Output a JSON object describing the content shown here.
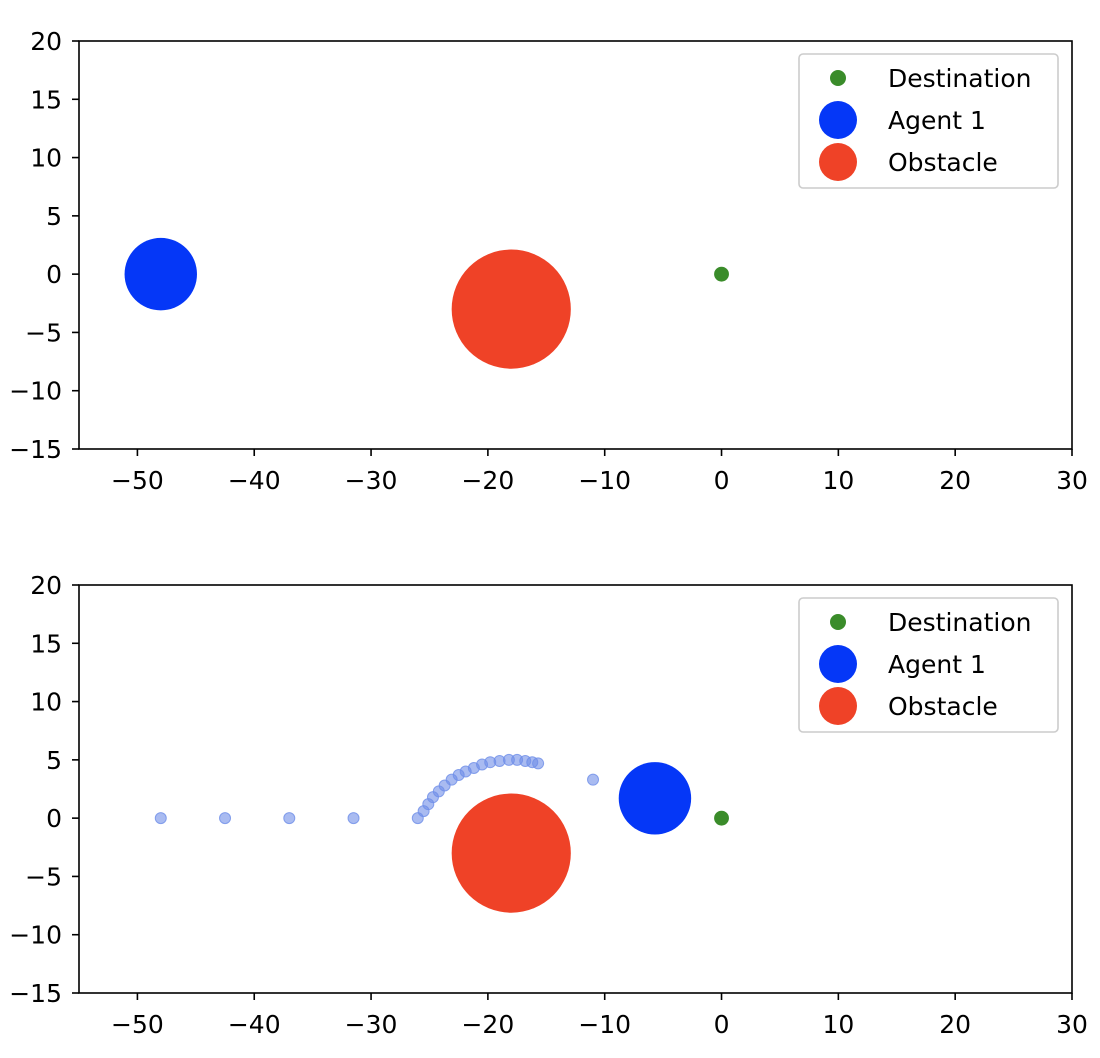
{
  "chart_data": [
    {
      "type": "scatter",
      "title": "",
      "xlabel": "",
      "ylabel": "",
      "xlim": [
        -55,
        30
      ],
      "ylim": [
        -15,
        20
      ],
      "xticks": [
        -50,
        -40,
        -30,
        -20,
        -10,
        0,
        10,
        20,
        30
      ],
      "xtick_labels": [
        "−50",
        "−40",
        "−30",
        "−20",
        "−10",
        "0",
        "10",
        "20",
        "30"
      ],
      "yticks": [
        20,
        15,
        10,
        5,
        0,
        -5,
        -10,
        -15
      ],
      "ytick_labels": [
        "20",
        "15",
        "10",
        "5",
        "0",
        "−5",
        "−10",
        "−15"
      ],
      "legend_position": "top-right",
      "legend": [
        "Destination",
        "Agent 1",
        "Obstacle"
      ],
      "colors": {
        "destination": "#3a8c2a",
        "agent": "#0537f7",
        "obstacle": "#ef4227",
        "trail": "#6f8ee8"
      },
      "destination": {
        "x": 0,
        "y": 0,
        "radius": 0.55
      },
      "agent": {
        "x": -48,
        "y": 0,
        "radius": 3.1
      },
      "obstacle": {
        "x": -18,
        "y": -3,
        "radius": 5.1
      },
      "trail": []
    },
    {
      "type": "scatter",
      "title": "",
      "xlabel": "",
      "ylabel": "",
      "xlim": [
        -55,
        30
      ],
      "ylim": [
        -15,
        20
      ],
      "xticks": [
        -50,
        -40,
        -30,
        -20,
        -10,
        0,
        10,
        20,
        30
      ],
      "xtick_labels": [
        "−50",
        "−40",
        "−30",
        "−20",
        "−10",
        "0",
        "10",
        "20",
        "30"
      ],
      "yticks": [
        20,
        15,
        10,
        5,
        0,
        -5,
        -10,
        -15
      ],
      "ytick_labels": [
        "20",
        "15",
        "10",
        "5",
        "0",
        "−5",
        "−10",
        "−15"
      ],
      "legend_position": "top-right",
      "legend": [
        "Destination",
        "Agent 1",
        "Obstacle"
      ],
      "colors": {
        "destination": "#3a8c2a",
        "agent": "#0537f7",
        "obstacle": "#ef4227",
        "trail": "#6f8ee8"
      },
      "destination": {
        "x": 0,
        "y": 0,
        "radius": 0.55
      },
      "agent": {
        "x": -5.7,
        "y": 1.7,
        "radius": 3.1
      },
      "obstacle": {
        "x": -18,
        "y": -3,
        "radius": 5.1
      },
      "trail": [
        {
          "x": -48.0,
          "y": 0.0
        },
        {
          "x": -42.5,
          "y": 0.0
        },
        {
          "x": -37.0,
          "y": 0.0
        },
        {
          "x": -31.5,
          "y": 0.0
        },
        {
          "x": -26.0,
          "y": 0.0
        },
        {
          "x": -25.5,
          "y": 0.6
        },
        {
          "x": -25.1,
          "y": 1.2
        },
        {
          "x": -24.7,
          "y": 1.8
        },
        {
          "x": -24.2,
          "y": 2.3
        },
        {
          "x": -23.7,
          "y": 2.8
        },
        {
          "x": -23.1,
          "y": 3.3
        },
        {
          "x": -22.5,
          "y": 3.7
        },
        {
          "x": -21.9,
          "y": 4.0
        },
        {
          "x": -21.2,
          "y": 4.3
        },
        {
          "x": -20.5,
          "y": 4.6
        },
        {
          "x": -19.8,
          "y": 4.8
        },
        {
          "x": -19.0,
          "y": 4.9
        },
        {
          "x": -18.2,
          "y": 5.0
        },
        {
          "x": -17.5,
          "y": 5.0
        },
        {
          "x": -16.8,
          "y": 4.9
        },
        {
          "x": -16.2,
          "y": 4.8
        },
        {
          "x": -15.7,
          "y": 4.7
        },
        {
          "x": -11.0,
          "y": 3.3
        }
      ]
    }
  ]
}
